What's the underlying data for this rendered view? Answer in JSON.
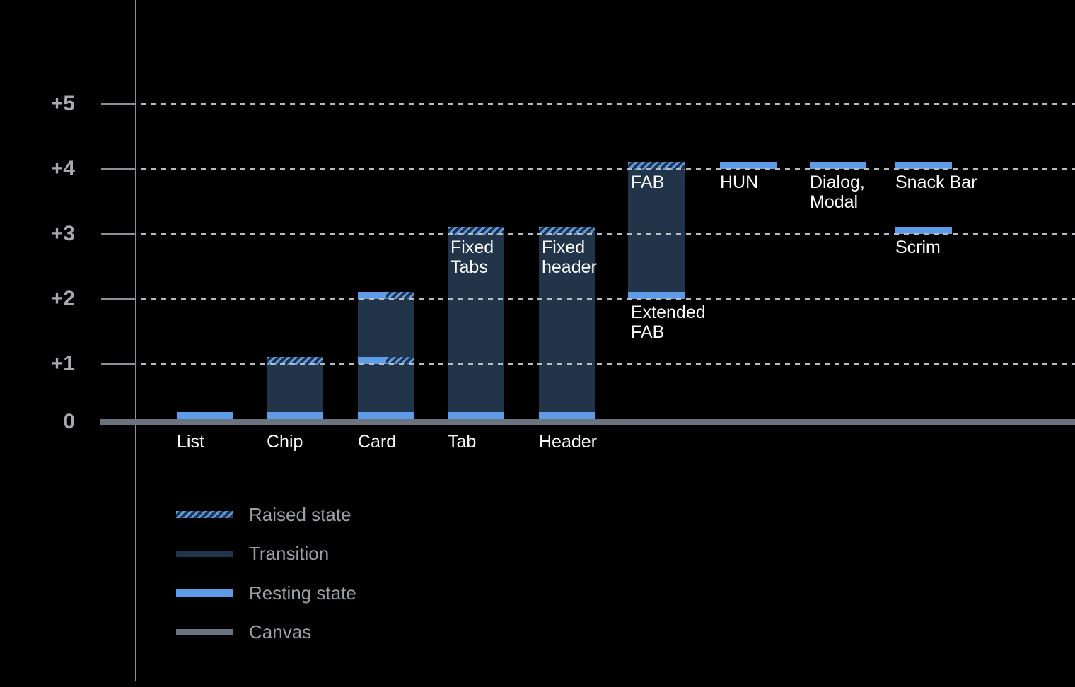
{
  "chart_data": {
    "type": "bar",
    "title": "",
    "xlabel": "",
    "ylabel": "",
    "ylim": [
      0,
      5
    ],
    "grid": "dotted horizontal gridlines at each elevation level",
    "legend_position": "bottom-left",
    "y_ticks": [
      {
        "label": "+5",
        "value": 5
      },
      {
        "label": "+4",
        "value": 4
      },
      {
        "label": "+3",
        "value": 3
      },
      {
        "label": "+2",
        "value": 2
      },
      {
        "label": "+1",
        "value": 1
      },
      {
        "label": "0",
        "value": 0
      }
    ],
    "categories": [
      "List",
      "Chip",
      "Card",
      "Tab",
      "Header",
      "FAB / Extended FAB",
      "HUN",
      "Dialog, Modal",
      "Snack Bar",
      "Scrim"
    ],
    "components": [
      {
        "label": "List",
        "position": "baseline",
        "resting": [
          0
        ],
        "raised": [],
        "split": [],
        "transition": null
      },
      {
        "label": "Chip",
        "position": "baseline",
        "resting": [
          0
        ],
        "raised": [
          1
        ],
        "split": [],
        "transition": [
          0,
          1
        ]
      },
      {
        "label": "Card",
        "position": "baseline",
        "resting": [
          0
        ],
        "raised": [],
        "split": [
          1,
          2
        ],
        "transition": [
          0,
          2
        ]
      },
      {
        "label": "Tab",
        "position": "baseline",
        "inner_label": "Fixed\nTabs",
        "resting": [
          0
        ],
        "raised": [
          3
        ],
        "split": [],
        "transition": [
          0,
          3
        ]
      },
      {
        "label": "Header",
        "position": "baseline",
        "inner_label": "Fixed\nheader",
        "resting": [
          0
        ],
        "raised": [
          3
        ],
        "split": [],
        "transition": [
          0,
          3
        ]
      },
      {
        "label": "FAB",
        "position": "inside-top",
        "below_label": "Extended\nFAB",
        "resting": [
          2
        ],
        "raised": [
          4
        ],
        "split": [],
        "transition": [
          2,
          4
        ]
      },
      {
        "label": "HUN",
        "position": "below-band",
        "resting": [
          4
        ],
        "raised": [],
        "split": [],
        "transition": null
      },
      {
        "label": "Dialog,\nModal",
        "position": "below-band",
        "resting": [
          4
        ],
        "raised": [],
        "split": [],
        "transition": null
      },
      {
        "label": "Snack Bar",
        "position": "below-band",
        "resting": [
          4
        ],
        "raised": [],
        "split": [],
        "transition": null
      },
      {
        "label": "Scrim",
        "position": "below-band",
        "resting": [
          3
        ],
        "raised": [],
        "split": [],
        "transition": null
      }
    ]
  },
  "legend": {
    "items": [
      {
        "label": "Raised state",
        "style": "raised"
      },
      {
        "label": "Transition",
        "style": "transition"
      },
      {
        "label": "Resting state",
        "style": "resting"
      },
      {
        "label": "Canvas",
        "style": "canvas"
      }
    ]
  },
  "colors": {
    "background": "#000000",
    "resting_state": "#5E9CE8",
    "transition": "#22344A",
    "canvas": "#6B737E",
    "axis": "#8A9096",
    "gridline": "#B7BCC1",
    "y_tick_label": "#A6AAAF",
    "legend_label": "#9BA0A5",
    "component_label": "#FAFAFA"
  }
}
